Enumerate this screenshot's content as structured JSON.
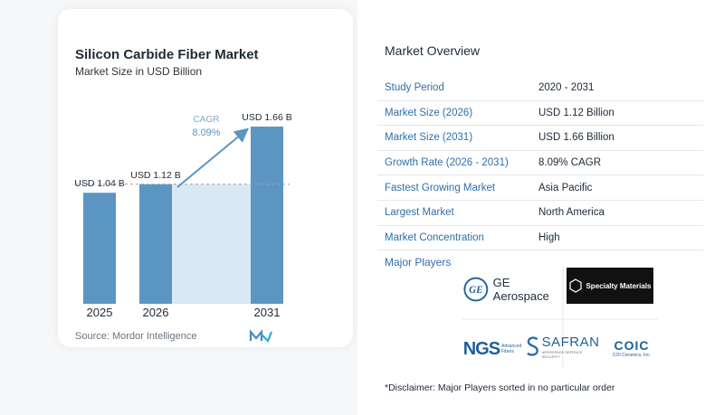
{
  "chart_data": {
    "type": "bar",
    "title": "Silicon Carbide Fiber Market",
    "subtitle": "Market Size in USD Billion",
    "categories": [
      "2025",
      "2026",
      "2031"
    ],
    "values": [
      1.04,
      1.12,
      1.66
    ],
    "value_labels": [
      "USD 1.04 B",
      "USD 1.12 B",
      "USD 1.66 B"
    ],
    "cagr_label": "CAGR",
    "cagr_value": "8.09%",
    "source": "Source:  Mordor Intelligence",
    "ylim": [
      0,
      1.66
    ],
    "colors": {
      "bar": "#5b96c2",
      "band": "#d9e8f3",
      "arrow": "#5b96c2",
      "dashed": "#9aa3ad"
    }
  },
  "overview": {
    "title": "Market Overview",
    "rows": [
      {
        "key": "Study Period",
        "value": "2020 - 2031"
      },
      {
        "key": "Market Size (2026)",
        "value": "USD 1.12 Billion"
      },
      {
        "key": "Market Size (2031)",
        "value": "USD 1.66 Billion"
      },
      {
        "key": "Growth Rate (2026 - 2031)",
        "value": "8.09% CAGR"
      },
      {
        "key": "Fastest Growing Market",
        "value": "Asia Pacific"
      },
      {
        "key": "Largest Market",
        "value": "North America"
      },
      {
        "key": "Market Concentration",
        "value": "High"
      }
    ],
    "players_label": "Major Players",
    "players": {
      "ge": "GE Aerospace",
      "ge_mark": "GE",
      "specialty": "Specialty Materials",
      "ngs": "NGS",
      "ngs_sub1": "Advanced",
      "ngs_sub2": "Fibers",
      "safran": "SAFRAN",
      "safran_sub": "AEROSPACE  DEFENCE  SECURITY",
      "coic": "COIC",
      "coic_sub": "COI Ceramics, Inc."
    },
    "disclaimer": "*Disclaimer: Major Players sorted in no particular order"
  },
  "colors": {
    "accent": "#2f6fa8",
    "brand": "#1f5f9a"
  }
}
